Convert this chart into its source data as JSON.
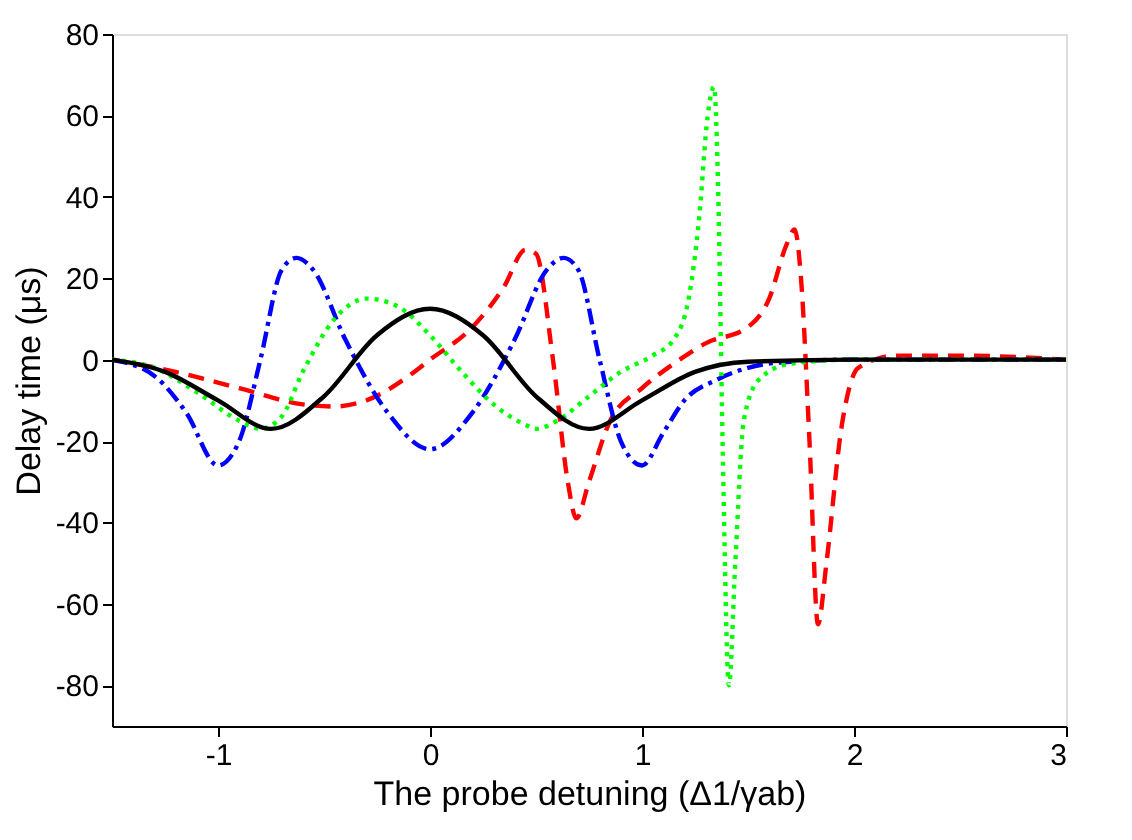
{
  "chart_data": {
    "type": "line",
    "xlabel": "The probe detuning (Δ1/γab)",
    "ylabel": "Delay time (μs)",
    "xlim": [
      -1.5,
      3
    ],
    "xticks": [
      -1,
      0,
      1,
      2,
      3
    ],
    "ylim": [
      -90,
      80
    ],
    "yticks": [
      -80,
      -60,
      -40,
      -20,
      0,
      20,
      40,
      60,
      80
    ],
    "grid": false,
    "series": [
      {
        "color": "#ff0000",
        "line_style": "dashed",
        "x": [
          -1.5,
          -1.2,
          -0.9,
          -0.6,
          -0.45,
          -0.3,
          -0.1,
          0,
          0.2,
          0.35,
          0.45,
          0.5,
          0.58,
          0.65,
          0.69,
          0.75,
          0.85,
          1.0,
          1.15,
          1.3,
          1.5,
          1.6,
          1.68,
          1.72,
          1.75,
          1.79,
          1.83,
          1.87,
          1.94,
          2.02,
          2.2,
          2.5,
          3
        ],
        "values": [
          0,
          -3,
          -7,
          -11,
          -11.5,
          -10,
          -4,
          0,
          8,
          18,
          27,
          26,
          0,
          -30,
          -39,
          -30,
          -15,
          -7,
          -1,
          4,
          8,
          15,
          28,
          32,
          20,
          -20,
          -65,
          -50,
          -17,
          -2,
          1,
          1,
          0
        ]
      },
      {
        "color": "#0000ff",
        "line_style": "dashdot",
        "x": [
          -1.5,
          -1.3,
          -1.15,
          -1.0,
          -0.9,
          -0.8,
          -0.7,
          -0.63,
          -0.55,
          -0.4,
          -0.2,
          0,
          0.2,
          0.4,
          0.55,
          0.63,
          0.7,
          0.8,
          0.9,
          1.0,
          1.1,
          1.2,
          1.35,
          1.5,
          1.7,
          2,
          3
        ],
        "values": [
          0,
          -4,
          -13,
          -26,
          -20,
          0,
          22,
          25,
          22,
          5,
          -13,
          -22,
          -13,
          5,
          22,
          25,
          22,
          0,
          -20,
          -26,
          -18,
          -10,
          -5,
          -2,
          -0.5,
          0,
          0
        ]
      },
      {
        "color": "#00ff00",
        "line_style": "dotted",
        "x": [
          -1.5,
          -1.3,
          -1.1,
          -0.9,
          -0.8,
          -0.7,
          -0.6,
          -0.45,
          -0.3,
          -0.15,
          0,
          0.15,
          0.3,
          0.45,
          0.5,
          0.6,
          0.75,
          0.9,
          1.05,
          1.15,
          1.22,
          1.27,
          1.31,
          1.34,
          1.36,
          1.38,
          1.41,
          1.44,
          1.48,
          1.55,
          1.7,
          2,
          3
        ],
        "values": [
          0,
          -2,
          -8,
          -15,
          -17,
          -14,
          -3,
          10,
          15,
          13,
          6,
          -3,
          -11,
          -16,
          -17,
          -15,
          -9,
          -3,
          1,
          5,
          15,
          35,
          60,
          67,
          40,
          -20,
          -80,
          -50,
          -15,
          -5,
          -1,
          0,
          0
        ]
      },
      {
        "color": "#000000",
        "line_style": "solid",
        "x": [
          -1.5,
          -1.25,
          -1.0,
          -0.75,
          -0.5,
          -0.25,
          0,
          0.25,
          0.5,
          0.75,
          1.0,
          1.25,
          1.5,
          2,
          3
        ],
        "values": [
          0,
          -3,
          -10,
          -17,
          -9,
          6,
          12.5,
          6,
          -9,
          -17,
          -10,
          -3,
          -0.5,
          0,
          0
        ]
      }
    ]
  }
}
